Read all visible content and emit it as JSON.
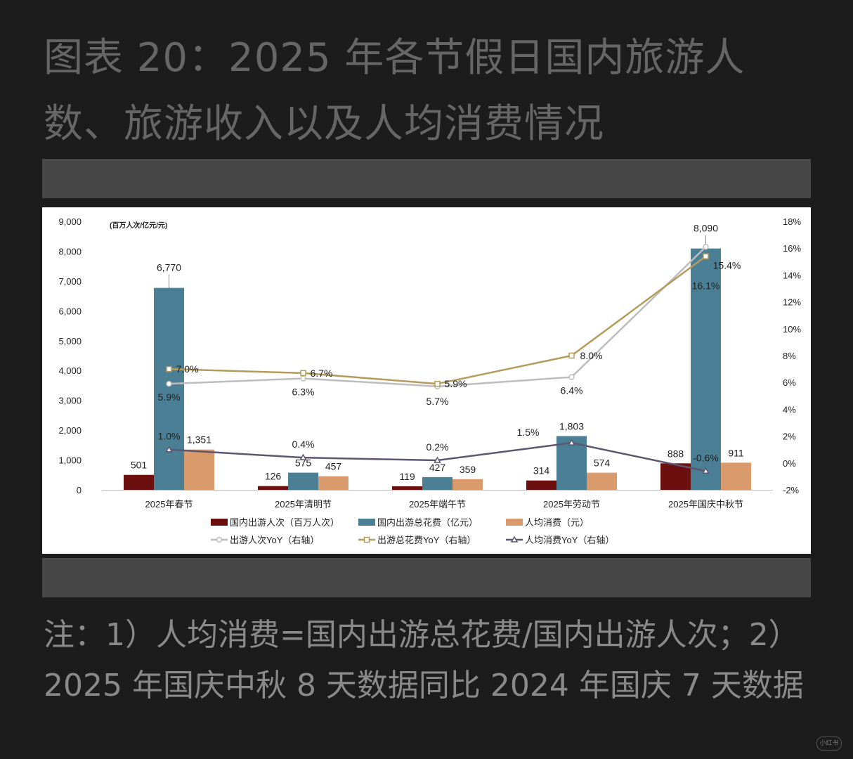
{
  "page": {
    "title": "图表 20：2025 年各节假日国内旅游人数、旅游收入以及人均消费情况",
    "note": "注：1）人均消费=国内出游总花费/国内出游人次；2）2025 年国庆中秋 8 天数据同比 2024 年国庆 7 天数据",
    "watermark": "小红书"
  },
  "chart_data": {
    "type": "bar",
    "unit_label": "(百万人次/亿元/元)",
    "categories": [
      "2025年春节",
      "2025年清明节",
      "2025年端午节",
      "2025年劳动节",
      "2025年国庆中秋节"
    ],
    "y_left": {
      "min": 0,
      "max": 9000,
      "step": 1000,
      "tick_labels": [
        "0",
        "1,000",
        "2,000",
        "3,000",
        "4,000",
        "5,000",
        "6,000",
        "7,000",
        "8,000",
        "9,000"
      ]
    },
    "y_right": {
      "min": -2,
      "max": 18,
      "step": 2,
      "tick_labels": [
        "-2%",
        "0%",
        "2%",
        "4%",
        "6%",
        "8%",
        "10%",
        "12%",
        "14%",
        "16%",
        "18%"
      ]
    },
    "bar_series": [
      {
        "name": "国内出游人次（百万人次）",
        "color": "#6b0f0f",
        "values": [
          501,
          126,
          119,
          314,
          888
        ],
        "labels": [
          "501",
          "126",
          "119",
          "314",
          "888"
        ]
      },
      {
        "name": "国内出游总花费（亿元）",
        "color": "#4a7f95",
        "values": [
          6770,
          575,
          427,
          1803,
          8090
        ],
        "labels": [
          "6,770",
          "575",
          "427",
          "1,803",
          "8,090"
        ]
      },
      {
        "name": "人均消费（元）",
        "color": "#d99b6c",
        "values": [
          1351,
          457,
          359,
          574,
          911
        ],
        "labels": [
          "1,351",
          "457",
          "359",
          "574",
          "911"
        ]
      }
    ],
    "line_series": [
      {
        "name": "出游人次YoY（右轴）",
        "color": "#bdbdbd",
        "marker": "circle",
        "values": [
          5.9,
          6.3,
          5.7,
          6.4,
          16.1
        ],
        "labels": [
          "5.9%",
          "6.3%",
          "5.7%",
          "6.4%",
          "16.1%"
        ]
      },
      {
        "name": "出游总花费YoY（右轴）",
        "color": "#b59a5a",
        "marker": "square",
        "values": [
          7.0,
          6.7,
          5.9,
          8.0,
          15.4
        ],
        "labels": [
          "7.0%",
          "6.7%",
          "5.9%",
          "8.0%",
          "15.4%"
        ]
      },
      {
        "name": "人均消费YoY（右轴）",
        "color": "#5e5670",
        "marker": "triangle",
        "values": [
          1.0,
          0.4,
          0.2,
          1.5,
          -0.6
        ],
        "labels": [
          "1.0%",
          "0.4%",
          "0.2%",
          "1.5%",
          "-0.6%"
        ]
      }
    ],
    "legend_position": "bottom",
    "grid": false
  }
}
